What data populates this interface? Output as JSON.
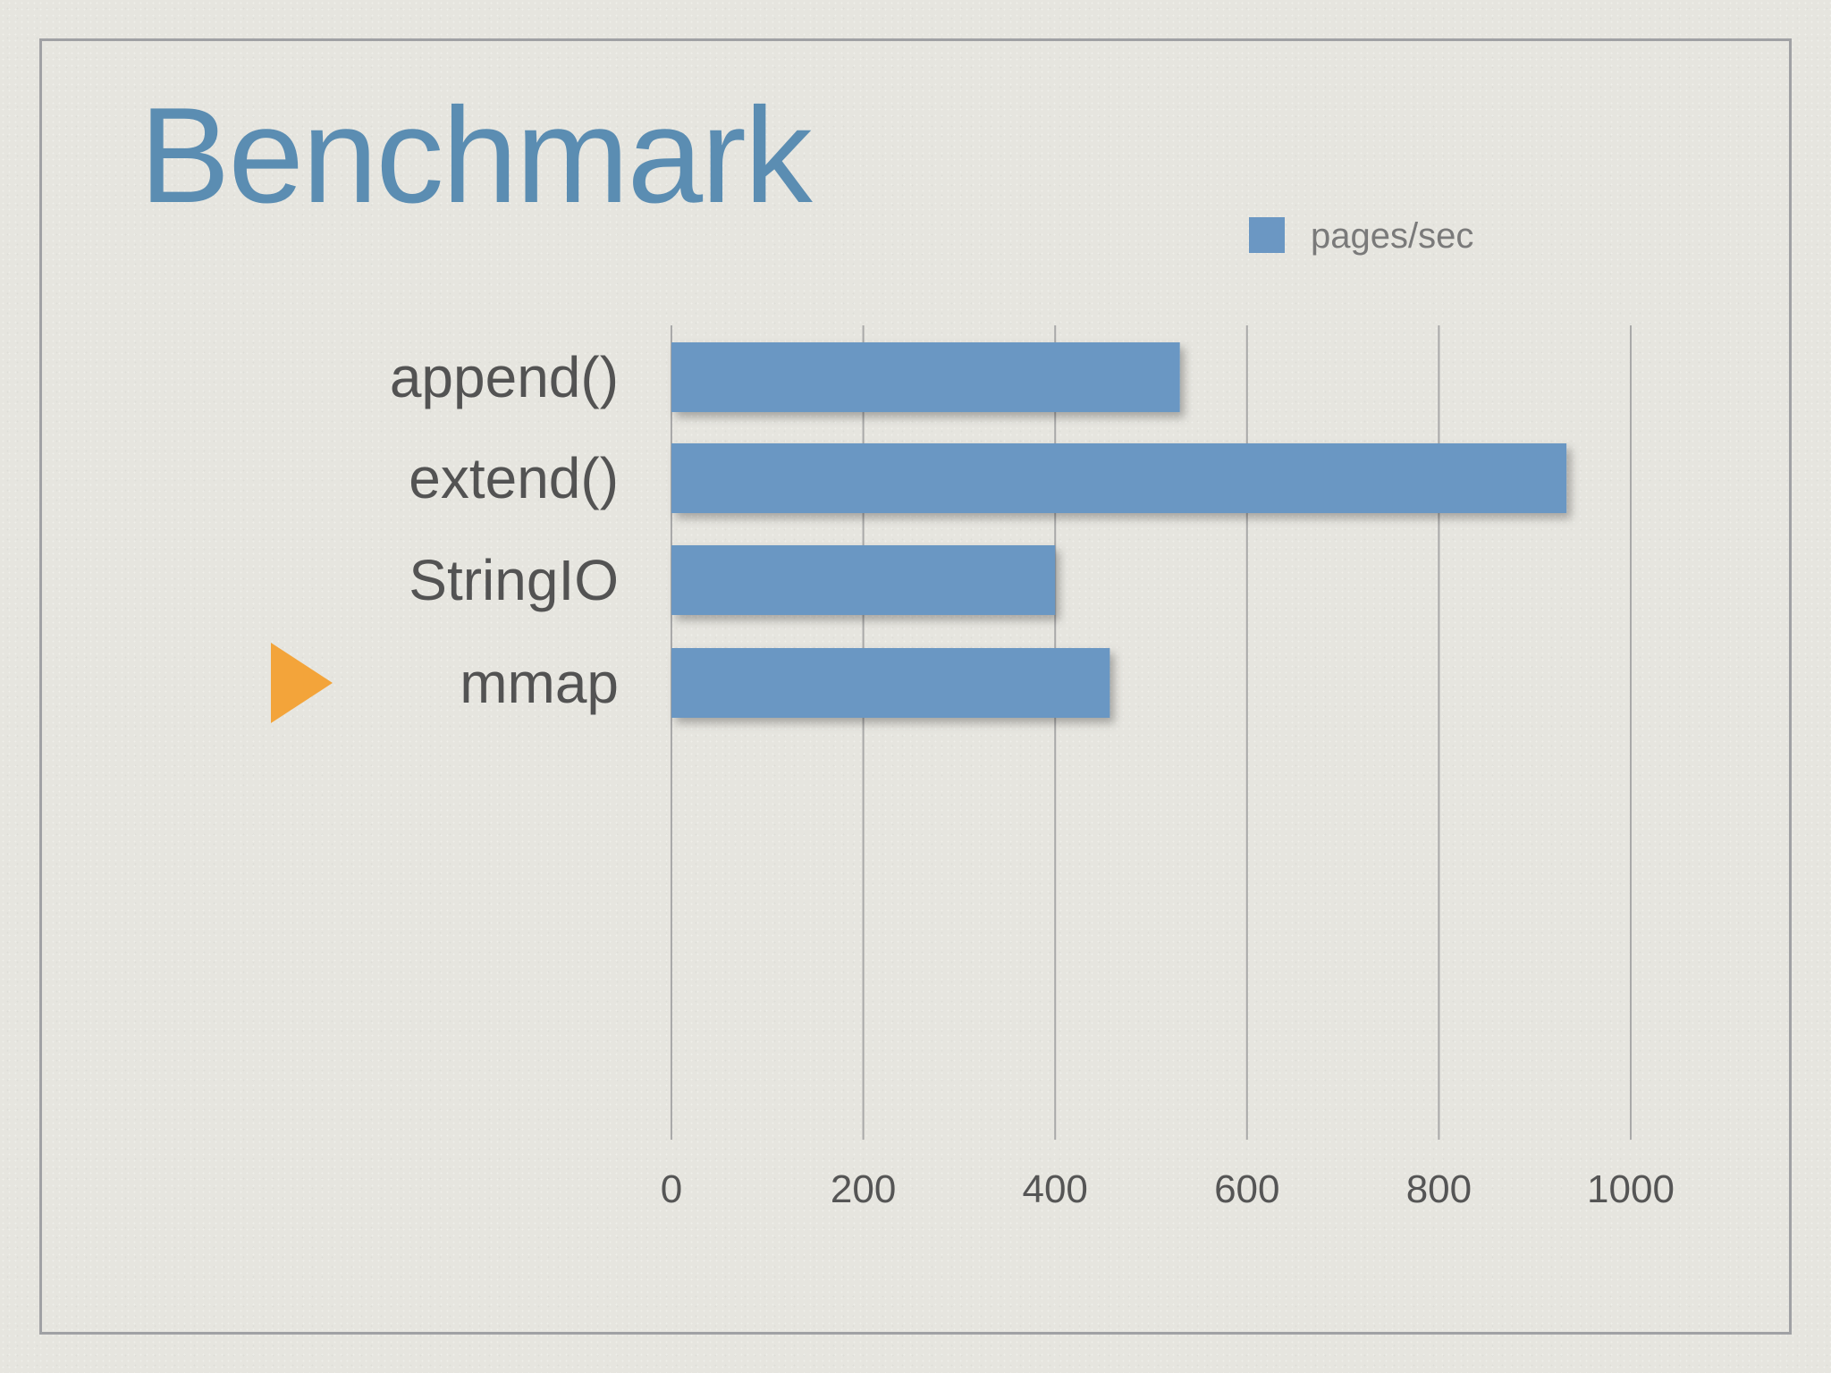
{
  "slide": {
    "title": "Benchmark"
  },
  "chart_data": {
    "type": "bar",
    "orientation": "horizontal",
    "categories": [
      "append()",
      "extend()",
      "StringIO",
      "mmap"
    ],
    "series": [
      {
        "name": "pages/sec",
        "values": [
          530,
          933,
          400,
          457
        ]
      }
    ],
    "xlim": [
      0,
      1000
    ],
    "xticks": [
      0,
      200,
      400,
      600,
      800,
      1000
    ],
    "grid": "vertical",
    "legend": "top-right",
    "highlighted_category": "mmap",
    "colors": {
      "bar": "#6b97c3",
      "highlight_marker": "#f3a43a",
      "grid": "#a9a9a9"
    }
  }
}
